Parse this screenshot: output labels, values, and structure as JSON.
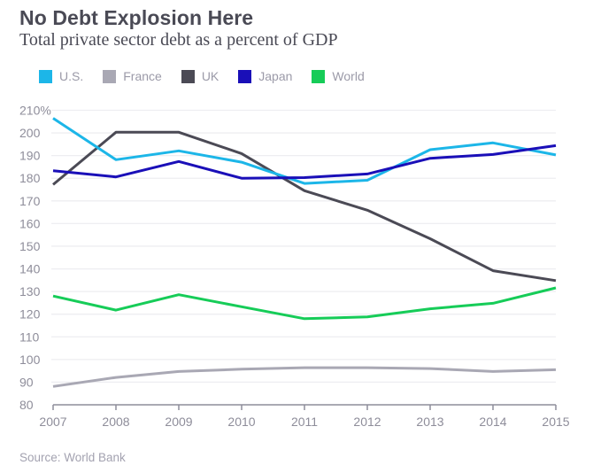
{
  "chart_data": {
    "type": "line",
    "title": "No Debt Explosion Here",
    "subtitle": "Total private sector debt as a percent of GDP",
    "xlabel": "",
    "ylabel": "",
    "x": [
      "2007",
      "2008",
      "2009",
      "2010",
      "2011",
      "2012",
      "2013",
      "2014",
      "2015"
    ],
    "ylim": [
      80,
      210
    ],
    "yticks": [
      80,
      90,
      100,
      110,
      120,
      130,
      140,
      150,
      160,
      170,
      180,
      190,
      200,
      210
    ],
    "ytick_labels": [
      "80",
      "90",
      "100",
      "110",
      "120",
      "130",
      "140",
      "150",
      "160",
      "170",
      "180",
      "190",
      "200",
      "210%"
    ],
    "grid": true,
    "legend_position": "top-left",
    "series": [
      {
        "name": "U.S.",
        "color": "#1cb6e8",
        "values": [
          206.5,
          188.2,
          192.1,
          187.1,
          177.7,
          179.1,
          192.6,
          195.6,
          190.3
        ]
      },
      {
        "name": "France",
        "color": "#a9a8b4",
        "values": [
          88.1,
          92.1,
          94.7,
          95.7,
          96.4,
          96.4,
          96.0,
          94.7,
          95.5
        ]
      },
      {
        "name": "UK",
        "color": "#4b4a55",
        "values": [
          177.2,
          200.3,
          200.3,
          190.9,
          174.5,
          165.9,
          153.3,
          139.2,
          134.8
        ]
      },
      {
        "name": "Japan",
        "color": "#1a0fb8",
        "values": [
          183.3,
          180.6,
          187.4,
          180.0,
          180.3,
          181.9,
          188.8,
          190.5,
          194.4
        ]
      },
      {
        "name": "World",
        "color": "#16cc58",
        "values": [
          128.0,
          121.8,
          128.6,
          123.3,
          118.0,
          118.8,
          122.4,
          124.8,
          131.6
        ]
      }
    ],
    "source": "Source: World Bank"
  }
}
